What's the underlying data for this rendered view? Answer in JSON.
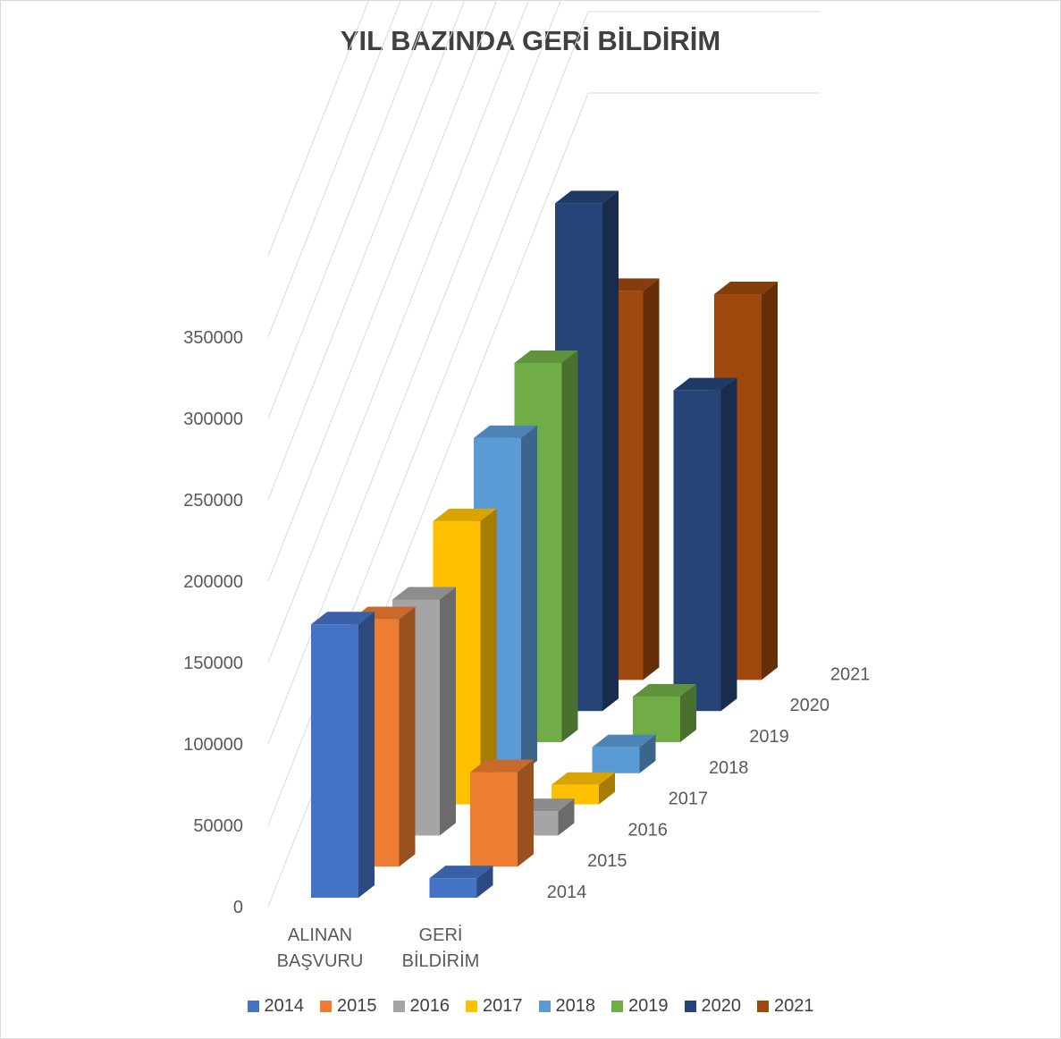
{
  "chart_data": {
    "type": "bar",
    "title": "YIL BAZINDA GERİ BİLDİRİM",
    "categories": [
      "ALINAN BAŞVURU",
      "GERİ BİLDİRİM"
    ],
    "category_lines": [
      [
        "ALINAN",
        "BAŞVURU"
      ],
      [
        "GERİ",
        "BİLDİRİM"
      ]
    ],
    "series": [
      {
        "name": "2014",
        "values": [
          168000,
          12000
        ],
        "color": "#4472C4"
      },
      {
        "name": "2015",
        "values": [
          152000,
          58000
        ],
        "color": "#ED7D31"
      },
      {
        "name": "2016",
        "values": [
          145000,
          15000
        ],
        "color": "#A5A5A5"
      },
      {
        "name": "2017",
        "values": [
          174000,
          12000
        ],
        "color": "#FFC000"
      },
      {
        "name": "2018",
        "values": [
          206000,
          16000
        ],
        "color": "#5B9BD5"
      },
      {
        "name": "2019",
        "values": [
          233000,
          28000
        ],
        "color": "#70AD47"
      },
      {
        "name": "2020",
        "values": [
          312000,
          197000
        ],
        "color": "#264478"
      },
      {
        "name": "2021",
        "values": [
          239000,
          237000
        ],
        "color": "#9E480E"
      }
    ],
    "ylim": [
      0,
      350000
    ],
    "yticks": [
      0,
      50000,
      100000,
      150000,
      200000,
      250000,
      300000,
      350000
    ],
    "ytick_labels": [
      "0",
      "50000",
      "100000",
      "150000",
      "200000",
      "250000",
      "300000",
      "350000"
    ],
    "legend": "bottom",
    "grid": true,
    "chart_style": "3d-column"
  }
}
